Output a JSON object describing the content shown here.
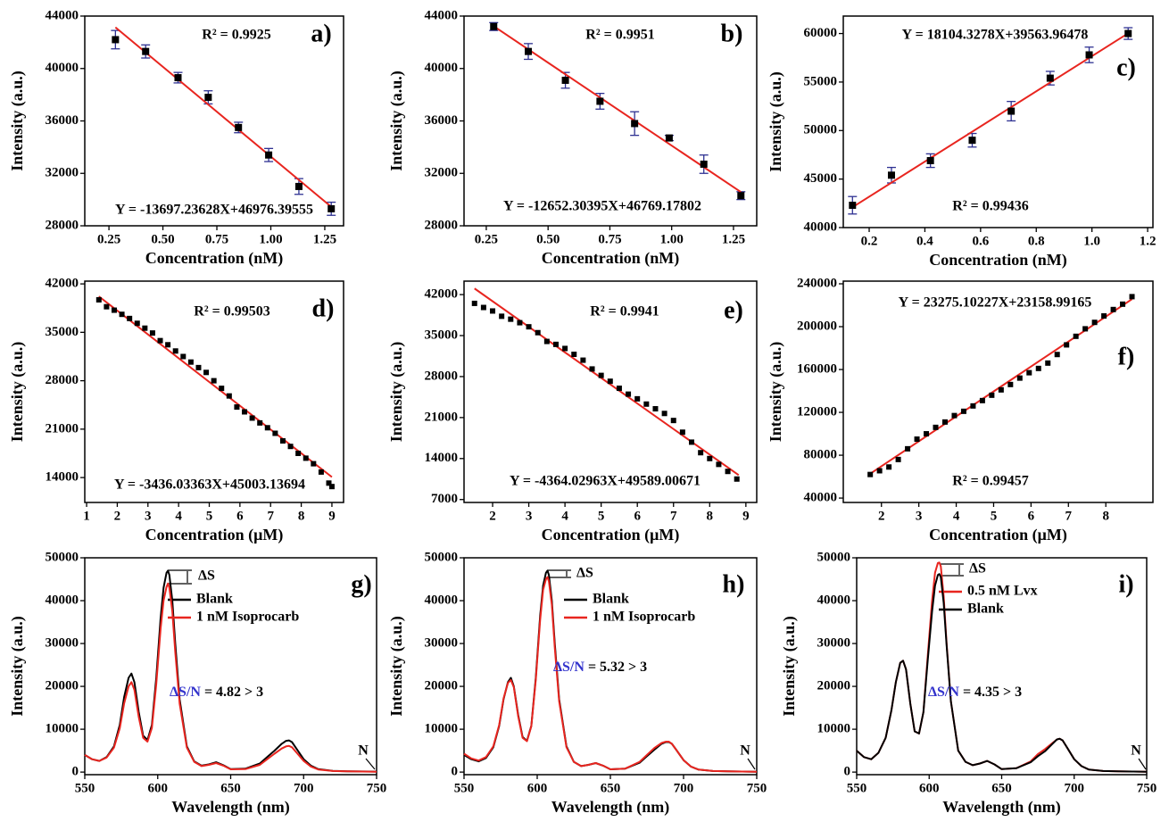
{
  "chart_data": [
    {
      "type": "scatter",
      "panel_label": "a)",
      "x_label": "Concentration (nM)",
      "y_label": "Intensity (a.u.)",
      "r2": "R² = 0.9925",
      "equation": "Y = -13697.23628X+46976.39555",
      "x": [
        0.28,
        0.42,
        0.57,
        0.71,
        0.85,
        0.99,
        1.13,
        1.28
      ],
      "values": [
        42200,
        41300,
        39300,
        37800,
        35500,
        33400,
        31000,
        29300
      ],
      "errors": [
        700,
        500,
        400,
        500,
        400,
        500,
        600,
        500
      ],
      "color": "#000000",
      "error_color": "#2e3192",
      "fit": {
        "x": [
          0.28,
          1.28
        ],
        "values": [
          43140,
          29444
        ],
        "color": "#e8251f"
      },
      "xlim": [
        0.138,
        1.337
      ],
      "xticks": [
        0.25,
        {
          "value": 0.5,
          "label": "0.50"
        },
        0.75,
        {
          "value": 1.0,
          "label": "1.00"
        },
        1.25
      ],
      "ylim": [
        28000,
        44000
      ],
      "yticks": [
        28000,
        32000,
        36000,
        40000,
        44000
      ]
    },
    {
      "type": "scatter",
      "panel_label": "b)",
      "x_label": "Concentration (nM)",
      "y_label": "Intensity (a.u.)",
      "r2": "R² = 0.9951",
      "equation": "Y = -12652.30395X+46769.17802",
      "x": [
        0.28,
        0.42,
        0.57,
        0.71,
        0.85,
        0.99,
        1.13,
        1.28
      ],
      "values": [
        43200,
        41300,
        39100,
        37500,
        35800,
        34700,
        32700,
        30300
      ],
      "errors": [
        300,
        600,
        600,
        600,
        900,
        200,
        700,
        300
      ],
      "color": "#000000",
      "error_color": "#2e3192",
      "fit": {
        "x": [
          0.28,
          1.28
        ],
        "values": [
          43227,
          30575
        ],
        "color": "#e8251f"
      },
      "xlim": [
        0.16,
        1.344
      ],
      "xticks": [
        0.25,
        {
          "value": 0.5,
          "label": "0.50"
        },
        0.75,
        {
          "value": 1.0,
          "label": "1.00"
        },
        1.25
      ],
      "ylim": [
        28000,
        44000
      ],
      "yticks": [
        28000,
        32000,
        36000,
        40000,
        44000
      ]
    },
    {
      "type": "scatter",
      "panel_label": "c)",
      "x_label": "Concentration (nM)",
      "y_label": "Intensity (a.u.)",
      "r2": "R² = 0.99436",
      "equation": "Y = 18104.3278X+39563.96478",
      "x": [
        0.14,
        0.28,
        0.42,
        0.57,
        0.71,
        0.85,
        0.99,
        1.13
      ],
      "values": [
        42300,
        45400,
        46900,
        49000,
        52000,
        55400,
        57800,
        60000
      ],
      "errors": [
        900,
        800,
        700,
        700,
        1000,
        700,
        800,
        600
      ],
      "color": "#000000",
      "error_color": "#2e3192",
      "fit": {
        "x": [
          0.14,
          1.13
        ],
        "values": [
          42098,
          60022
        ],
        "color": "#e8251f"
      },
      "xlim": [
        0.107,
        1.219
      ],
      "xticks": [
        0.2,
        0.4,
        0.6,
        0.8,
        {
          "value": 1.0,
          "label": "1.0"
        },
        1.2
      ],
      "ylim": [
        40000,
        61800
      ],
      "yticks": [
        40000,
        45000,
        50000,
        55000,
        60000
      ]
    },
    {
      "type": "scatter",
      "panel_label": "d)",
      "x_label": "Concentration (μM)",
      "y_label": "Intensity (a.u.)",
      "r2": "R² = 0.99503",
      "equation": "Y = -3436.03363X+45003.13694",
      "x": [
        1.4,
        1.65,
        1.9,
        2.15,
        2.4,
        2.65,
        2.9,
        3.15,
        3.4,
        3.65,
        3.9,
        4.15,
        4.4,
        4.65,
        4.9,
        5.15,
        5.4,
        5.65,
        5.9,
        6.15,
        6.4,
        6.65,
        6.9,
        7.15,
        7.4,
        7.65,
        7.9,
        8.15,
        8.4,
        8.65,
        8.9,
        9.0
      ],
      "values": [
        39700,
        38700,
        38200,
        37600,
        37000,
        36300,
        35600,
        34900,
        33800,
        33200,
        32300,
        31500,
        30700,
        29900,
        29200,
        28000,
        26900,
        25800,
        24200,
        23500,
        22600,
        21900,
        21200,
        20400,
        19300,
        18500,
        17500,
        16800,
        16000,
        14800,
        13200,
        12700
      ],
      "color": "#000000",
      "fit": {
        "x": [
          1.4,
          9.0
        ],
        "values": [
          40193,
          14079
        ],
        "color": "#e8251f"
      },
      "xlim": [
        0.94,
        9.38
      ],
      "xticks": [
        1,
        2,
        3,
        4,
        5,
        6,
        7,
        8,
        9
      ],
      "ylim": [
        10400,
        42400
      ],
      "yticks": [
        14000,
        21000,
        28000,
        35000,
        42000
      ]
    },
    {
      "type": "scatter",
      "panel_label": "e)",
      "x_label": "Concentration (μM)",
      "y_label": "Intensity (a.u.)",
      "r2": "R² = 0.9941",
      "equation": "Y = -4364.02963X+49589.00671",
      "x": [
        1.5,
        1.75,
        2.0,
        2.25,
        2.5,
        2.75,
        3.0,
        3.25,
        3.5,
        3.75,
        4.0,
        4.25,
        4.5,
        4.75,
        5.0,
        5.25,
        5.5,
        5.75,
        6.0,
        6.25,
        6.5,
        6.75,
        7.0,
        7.25,
        7.5,
        7.75,
        8.0,
        8.25,
        8.5,
        8.75
      ],
      "values": [
        40500,
        39800,
        39200,
        38300,
        37800,
        37200,
        36500,
        35500,
        34000,
        33500,
        32800,
        31800,
        30800,
        29300,
        28200,
        27200,
        26000,
        25000,
        24200,
        23300,
        22500,
        21700,
        20500,
        18500,
        16800,
        15000,
        14000,
        13000,
        11800,
        10500
      ],
      "color": "#000000",
      "fit": {
        "x": [
          1.5,
          8.8
        ],
        "values": [
          43043,
          11186
        ],
        "color": "#e8251f"
      },
      "xlim": [
        1.21,
        9.3
      ],
      "xticks": [
        2,
        3,
        4,
        5,
        6,
        7,
        8,
        9
      ],
      "ylim": [
        6500,
        44300
      ],
      "yticks": [
        7000,
        14000,
        21000,
        28000,
        35000,
        42000
      ]
    },
    {
      "type": "scatter",
      "panel_label": "f)",
      "x_label": "Concentration (μM)",
      "y_label": "Intensity (a.u.)",
      "r2": "R² = 0.99457",
      "equation": "Y = 23275.10227X+23158.99165",
      "x": [
        1.7,
        1.95,
        2.2,
        2.45,
        2.7,
        2.95,
        3.2,
        3.45,
        3.7,
        3.95,
        4.2,
        4.45,
        4.7,
        4.95,
        5.2,
        5.45,
        5.7,
        5.95,
        6.2,
        6.45,
        6.7,
        6.95,
        7.2,
        7.45,
        7.7,
        7.95,
        8.2,
        8.45,
        8.7
      ],
      "values": [
        62000,
        65500,
        69000,
        76000,
        86000,
        95000,
        100000,
        106000,
        111000,
        117000,
        121000,
        126000,
        131000,
        136000,
        141000,
        146000,
        152000,
        157000,
        161000,
        166000,
        174000,
        183000,
        191000,
        198000,
        204000,
        210000,
        216000,
        221000,
        228000
      ],
      "color": "#000000",
      "fit": {
        "x": [
          1.7,
          8.7
        ],
        "values": [
          62727,
          225653
        ],
        "color": "#e8251f"
      },
      "xlim": [
        0.98,
        9.26
      ],
      "xticks": [
        2,
        3,
        4,
        5,
        6,
        7,
        8
      ],
      "ylim": [
        35900,
        242500
      ],
      "yticks": [
        40000,
        80000,
        120000,
        160000,
        200000,
        240000
      ]
    },
    {
      "type": "line",
      "panel_label": "g)",
      "x_label": "Wavelength (nm)",
      "y_label": "Intensity (a.u.)",
      "delta_label": "ΔS",
      "snr_label": "ΔS/N",
      "snr_value": "= 4.82 > 3",
      "noise_label": "N",
      "annotation_color": "#3333cc",
      "noise_color": "#7b2d8e",
      "x": [
        550,
        555,
        560,
        565,
        570,
        574,
        577,
        580,
        582,
        584,
        587,
        590,
        593,
        596,
        599,
        602,
        604,
        606,
        607,
        608,
        610,
        612,
        615,
        620,
        625,
        630,
        635,
        640,
        645,
        650,
        660,
        670,
        675,
        680,
        685,
        688,
        690,
        692,
        695,
        700,
        705,
        710,
        720,
        730,
        740,
        750
      ],
      "series": [
        {
          "name": "Blank",
          "color": "#000000",
          "values": [
            4000,
            3000,
            2600,
            3500,
            6000,
            11000,
            17500,
            22000,
            23000,
            21000,
            14000,
            8500,
            7500,
            11000,
            22000,
            36000,
            43000,
            46500,
            47000,
            46000,
            40000,
            30000,
            17000,
            6000,
            2500,
            1500,
            1800,
            2300,
            1600,
            700,
            800,
            2000,
            3500,
            5000,
            6600,
            7300,
            7400,
            7000,
            5500,
            3000,
            1500,
            700,
            300,
            200,
            150,
            100
          ]
        },
        {
          "name": "1 nM Isoprocarb",
          "color": "#e8251f",
          "values": [
            4000,
            3000,
            2600,
            3400,
            5700,
            10200,
            16000,
            20000,
            21000,
            19200,
            12800,
            8000,
            7100,
            10300,
            20500,
            33500,
            40000,
            43200,
            44000,
            43000,
            37500,
            28000,
            16000,
            5700,
            2400,
            1400,
            1700,
            2100,
            1500,
            650,
            700,
            1700,
            3000,
            4300,
            5500,
            6000,
            6100,
            5800,
            4600,
            2600,
            1300,
            600,
            250,
            180,
            130,
            90
          ]
        }
      ],
      "xlim": [
        550,
        750
      ],
      "xticks": [
        550,
        600,
        650,
        700,
        750
      ],
      "ylim": [
        -600,
        50000
      ],
      "yticks": [
        0,
        10000,
        20000,
        30000,
        40000,
        50000
      ]
    },
    {
      "type": "line",
      "panel_label": "h)",
      "x_label": "Wavelength (nm)",
      "y_label": "Intensity (a.u.)",
      "delta_label": "ΔS",
      "snr_label": "ΔS/N",
      "snr_value": "= 5.32 > 3",
      "noise_label": "N",
      "annotation_color": "#3333cc",
      "noise_color": "#7b2d8e",
      "x": [
        550,
        555,
        560,
        565,
        570,
        574,
        577,
        580,
        582,
        584,
        587,
        590,
        593,
        596,
        599,
        602,
        604,
        606,
        607,
        608,
        610,
        612,
        615,
        620,
        625,
        630,
        635,
        640,
        645,
        650,
        660,
        670,
        675,
        680,
        685,
        688,
        690,
        692,
        695,
        700,
        705,
        710,
        720,
        730,
        740,
        750
      ],
      "series": [
        {
          "name": "Blank",
          "color": "#000000",
          "values": [
            4000,
            3000,
            2500,
            3300,
            5800,
            10800,
            17000,
            21000,
            22000,
            20000,
            13300,
            8200,
            7300,
            10800,
            22000,
            36500,
            43500,
            46500,
            47000,
            46000,
            40000,
            30000,
            17000,
            6000,
            2400,
            1400,
            1700,
            2100,
            1500,
            650,
            800,
            2200,
            3700,
            5200,
            6600,
            7000,
            7000,
            6600,
            5200,
            2800,
            1300,
            600,
            250,
            170,
            120,
            80
          ]
        },
        {
          "name": "1 nM Isoprocarb",
          "color": "#e8251f",
          "values": [
            4300,
            3200,
            2700,
            3500,
            6000,
            11000,
            17200,
            20800,
            21500,
            19800,
            13000,
            8000,
            7200,
            10700,
            21500,
            35500,
            42500,
            45000,
            45500,
            44500,
            39000,
            29000,
            16500,
            5800,
            2400,
            1400,
            1700,
            2100,
            1500,
            650,
            800,
            2400,
            4000,
            5600,
            6800,
            7100,
            7100,
            6600,
            5200,
            2800,
            1300,
            600,
            250,
            170,
            120,
            80
          ]
        }
      ],
      "xlim": [
        550,
        750
      ],
      "xticks": [
        550,
        600,
        650,
        700,
        750
      ],
      "ylim": [
        -600,
        50000
      ],
      "yticks": [
        0,
        10000,
        20000,
        30000,
        40000,
        50000
      ]
    },
    {
      "type": "line",
      "panel_label": "i)",
      "x_label": "Wavelength (nm)",
      "y_label": "Intensity (a.u.)",
      "delta_label": "ΔS",
      "snr_label": "ΔS/N",
      "snr_value": "= 4.35 > 3",
      "noise_label": "N",
      "annotation_color": "#3333cc",
      "noise_color": "#7b2d8e",
      "x": [
        550,
        555,
        560,
        565,
        570,
        574,
        577,
        580,
        582,
        584,
        587,
        590,
        593,
        596,
        599,
        602,
        604,
        606,
        607,
        608,
        610,
        612,
        615,
        620,
        625,
        630,
        635,
        640,
        645,
        650,
        660,
        670,
        675,
        680,
        685,
        688,
        690,
        692,
        695,
        700,
        705,
        710,
        720,
        730,
        740,
        750
      ],
      "series": [
        {
          "name": "0.5 nM Lvx",
          "color": "#e8251f",
          "values": [
            5000,
            3500,
            3000,
            4500,
            8000,
            14500,
            21000,
            25500,
            26000,
            24000,
            16000,
            9500,
            9000,
            14000,
            27000,
            40000,
            46500,
            48800,
            48900,
            48000,
            41000,
            30000,
            16500,
            5000,
            2400,
            1600,
            2000,
            2600,
            1800,
            700,
            900,
            2500,
            4200,
            5400,
            6800,
            7600,
            7800,
            7400,
            5800,
            3000,
            1400,
            600,
            250,
            170,
            120,
            80
          ]
        },
        {
          "name": "Blank",
          "color": "#000000",
          "values": [
            5000,
            3500,
            3000,
            4500,
            8000,
            14500,
            21000,
            25500,
            26000,
            24000,
            16000,
            9500,
            9000,
            14000,
            26000,
            37500,
            43500,
            46000,
            46200,
            45500,
            39500,
            29500,
            16500,
            5000,
            2400,
            1600,
            2000,
            2600,
            1800,
            700,
            900,
            2300,
            3700,
            4900,
            6600,
            7600,
            7800,
            7400,
            5800,
            3000,
            1400,
            600,
            250,
            170,
            120,
            80
          ]
        }
      ],
      "xlim": [
        550,
        750
      ],
      "xticks": [
        550,
        600,
        650,
        700,
        750
      ],
      "ylim": [
        -600,
        50000
      ],
      "yticks": [
        0,
        10000,
        20000,
        30000,
        40000,
        50000
      ]
    }
  ]
}
